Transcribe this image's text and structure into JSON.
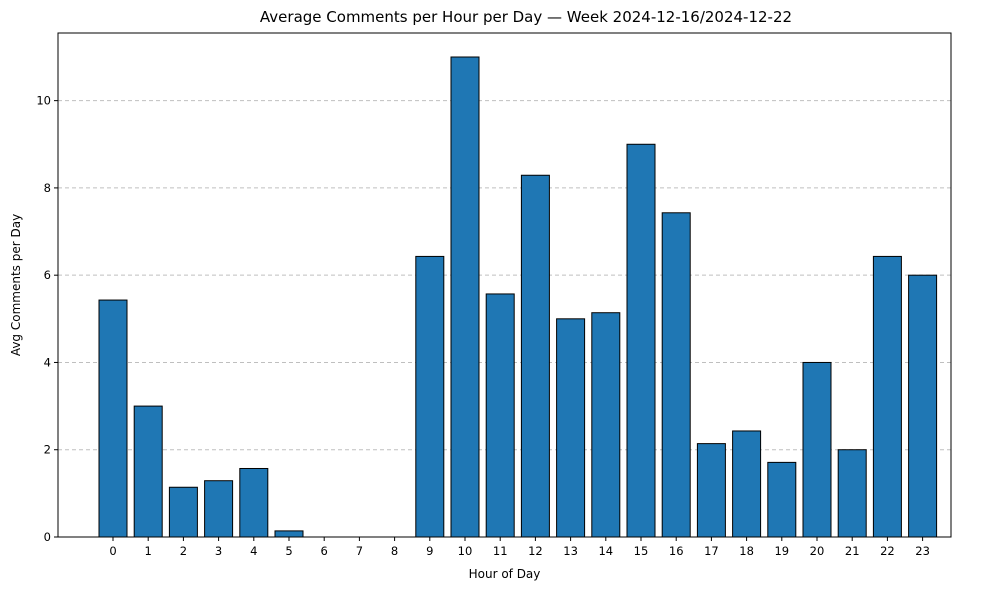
{
  "chart_data": {
    "type": "bar",
    "title": "Average Comments per Hour per Day — Week 2024-12-16/2024-12-22",
    "xlabel": "Hour of Day",
    "ylabel": "Avg Comments per Day",
    "categories": [
      "0",
      "1",
      "2",
      "3",
      "4",
      "5",
      "6",
      "7",
      "8",
      "9",
      "10",
      "11",
      "12",
      "13",
      "14",
      "15",
      "16",
      "17",
      "18",
      "19",
      "20",
      "21",
      "22",
      "23"
    ],
    "values": [
      5.43,
      3.0,
      1.14,
      1.29,
      1.57,
      0.14,
      0,
      0,
      0,
      6.43,
      11.0,
      5.57,
      8.29,
      5.0,
      5.14,
      9.0,
      7.43,
      2.14,
      2.43,
      1.71,
      4.0,
      2.0,
      6.43,
      6.0
    ],
    "ylim": [
      0,
      11.55
    ],
    "yticks": [
      0,
      2,
      4,
      6,
      8,
      10
    ],
    "grid": "y-dashed",
    "bar_color": "#1f77b4",
    "edge_color": "#000000"
  }
}
